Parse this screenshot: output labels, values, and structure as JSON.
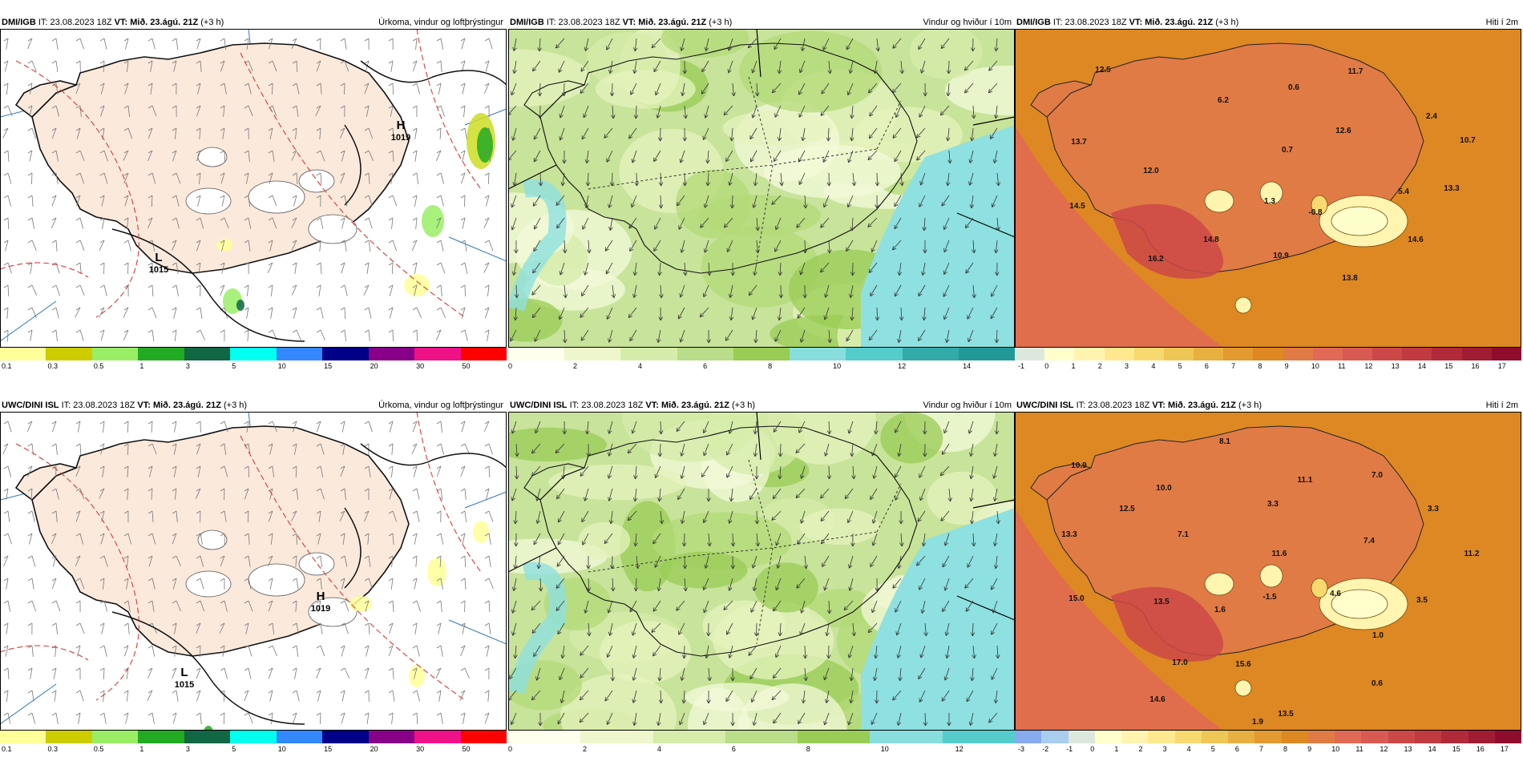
{
  "rows": [
    {
      "panels": [
        {
          "model": "DMI/IGB",
          "it_label": "IT:",
          "it_value": "23.08.2023 18Z",
          "vt_label": "VT:",
          "vt_value": "Mið. 23.ágú. 21Z",
          "lead": "(+3 h)",
          "title": "Úrkoma, vindur og loftþrýstingur",
          "kind": "precip",
          "labels": [
            {
              "t": "H",
              "v": "1019"
            },
            {
              "t": "L",
              "v": "1015"
            }
          ],
          "colorbar": [
            "#ffff99",
            "#cccc00",
            "#99ee66",
            "#22aa22",
            "#116644",
            "#00ffee",
            "#3388ff",
            "#000088",
            "#880088",
            "#ee1188",
            "#ff0000"
          ],
          "ticks": [
            "0.1",
            "0.3",
            "0.5",
            "1",
            "3",
            "5",
            "10",
            "15",
            "20",
            "30",
            "50"
          ]
        },
        {
          "model": "DMI/IGB",
          "it_label": "IT:",
          "it_value": "23.08.2023 18Z",
          "vt_label": "VT:",
          "vt_value": "Mið. 23.ágú. 21Z",
          "lead": "(+3 h)",
          "title": "Vindur og hviður í 10m",
          "kind": "wind",
          "colorbar": [
            "#ffffee",
            "#eef7cc",
            "#d5ecaa",
            "#b9dd88",
            "#99cc55",
            "#88dddd",
            "#55cccc",
            "#33aaaa",
            "#229999"
          ],
          "ticks": [
            "0",
            "2",
            "4",
            "6",
            "8",
            "10",
            "12",
            "14"
          ]
        },
        {
          "model": "DMI/IGB",
          "it_label": "IT:",
          "it_value": "23.08.2023 18Z",
          "vt_label": "VT:",
          "vt_value": "Mið. 23.ágú. 21Z",
          "lead": "(+3 h)",
          "title": "Hiti í 2m",
          "kind": "temp",
          "labels": [
            "12.5",
            "11.7",
            "6.2",
            "0.6",
            "13.7",
            "0.7",
            "12.6",
            "2.4",
            "10.7",
            "12.0",
            "1.3",
            "13.3",
            "14.5",
            "-0.8",
            "5.4",
            "14.8",
            "10.9",
            "14.6",
            "16.2",
            "13.8"
          ],
          "colorbar": [
            "#dde8dd",
            "#ffffcc",
            "#fff5b0",
            "#ffe88f",
            "#f7d970",
            "#eec655",
            "#e8b040",
            "#e39a30",
            "#dd8822",
            "#e07b45",
            "#e06a55",
            "#d95a52",
            "#cc4848",
            "#c03a40",
            "#b02a3a",
            "#a01c33",
            "#900c2c"
          ],
          "ticks": [
            "-1",
            "0",
            "1",
            "2",
            "3",
            "4",
            "5",
            "6",
            "7",
            "8",
            "9",
            "10",
            "11",
            "12",
            "13",
            "14",
            "15",
            "16",
            "17"
          ]
        }
      ]
    },
    {
      "panels": [
        {
          "model": "UWC/DINI ISL",
          "it_label": "IT:",
          "it_value": "23.08.2023 18Z",
          "vt_label": "VT:",
          "vt_value": "Mið. 23.ágú. 21Z",
          "lead": "(+3 h)",
          "title": "Úrkoma, vindur og loftþrýstingur",
          "kind": "precip",
          "labels": [
            {
              "t": "H",
              "v": "1019"
            },
            {
              "t": "L",
              "v": "1015"
            }
          ],
          "colorbar": [
            "#ffff99",
            "#cccc00",
            "#99ee66",
            "#22aa22",
            "#116644",
            "#00ffee",
            "#3388ff",
            "#000088",
            "#880088",
            "#ee1188",
            "#ff0000"
          ],
          "ticks": [
            "0.1",
            "0.3",
            "0.5",
            "1",
            "3",
            "5",
            "10",
            "15",
            "20",
            "30",
            "50"
          ]
        },
        {
          "model": "UWC/DINI ISL",
          "it_label": "IT:",
          "it_value": "23.08.2023 18Z",
          "vt_label": "VT:",
          "vt_value": "Mið. 23.ágú. 21Z",
          "lead": "(+3 h)",
          "title": "Vindur og hviður í 10m",
          "kind": "wind",
          "colorbar": [
            "#ffffee",
            "#eef7cc",
            "#d5ecaa",
            "#b9dd88",
            "#99cc55",
            "#88dddd",
            "#55cccc"
          ],
          "ticks": [
            "0",
            "2",
            "4",
            "6",
            "8",
            "10",
            "12"
          ]
        },
        {
          "model": "UWC/DINI ISL",
          "it_label": "IT:",
          "it_value": "23.08.2023 18Z",
          "vt_label": "VT:",
          "vt_value": "Mið. 23.ágú. 21Z",
          "lead": "(+3 h)",
          "title": "Hiti í 2m",
          "kind": "temp",
          "labels": [
            "8.1",
            "10.9",
            "11.1",
            "7.0",
            "10.0",
            "3.3",
            "12.5",
            "3.3",
            "13.3",
            "7.1",
            "11.6",
            "7.4",
            "11.2",
            "4.6",
            "15.0",
            "13.5",
            "1.6",
            "-1.5",
            "3.5",
            "1.0",
            "17.0",
            "15.6",
            "0.6",
            "14.6",
            "13.5",
            "1.9"
          ],
          "colorbar": [
            "#88aaee",
            "#aaccee",
            "#dde8dd",
            "#ffffcc",
            "#fff5b0",
            "#ffe88f",
            "#f7d970",
            "#eec655",
            "#e8b040",
            "#e39a30",
            "#dd8822",
            "#e07b45",
            "#e06a55",
            "#d95a52",
            "#cc4848",
            "#c03a40",
            "#b02a3a",
            "#a01c33",
            "#900c2c"
          ],
          "ticks": [
            "-3",
            "-2",
            "-1",
            "0",
            "1",
            "2",
            "3",
            "4",
            "5",
            "6",
            "7",
            "8",
            "9",
            "10",
            "11",
            "12",
            "13",
            "14",
            "15",
            "16",
            "17"
          ]
        }
      ]
    }
  ]
}
